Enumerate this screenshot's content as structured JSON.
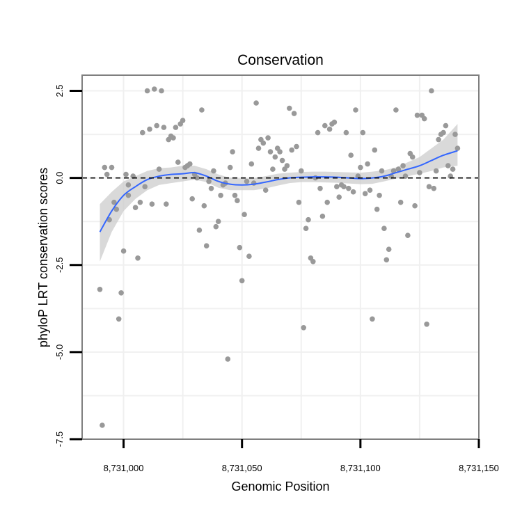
{
  "chart_data": {
    "type": "scatter",
    "title": "Conservation",
    "xlabel": "Genomic Position",
    "ylabel": "phyloP LRT conservation scores",
    "xlim": [
      8730982.5,
      8731150
    ],
    "ylim": [
      -7.5,
      2.95
    ],
    "x_ticks": [
      8731000,
      8731050,
      8731100,
      8731150
    ],
    "x_tick_labels": [
      "8,731,000",
      "8,731,050",
      "8,731,100",
      "8,731,150"
    ],
    "y_ticks": [
      -7.5,
      -5.0,
      -2.5,
      0.0,
      2.5
    ],
    "y_tick_labels": [
      "-7.5",
      "-5.0",
      "-2.5",
      "0.0",
      "2.5"
    ],
    "grid": true,
    "reference_line": {
      "y": 0,
      "style": "dashed",
      "color": "#000000"
    },
    "colors": {
      "points": "#999999",
      "smooth": "#3366ff",
      "ribbon": "#cccccc",
      "border": "#7f7f7f",
      "grid": "#f0f0f0"
    },
    "points": [
      [
        8730990,
        -3.2
      ],
      [
        8730991,
        -7.1
      ],
      [
        8730992,
        0.3
      ],
      [
        8730993,
        0.1
      ],
      [
        8730994,
        -1.2
      ],
      [
        8730995,
        0.3
      ],
      [
        8730996,
        -0.7
      ],
      [
        8730997,
        -0.9
      ],
      [
        8730998,
        -4.05
      ],
      [
        8730999,
        -3.3
      ],
      [
        8731000,
        -2.1
      ],
      [
        8731001,
        0.1
      ],
      [
        8731002,
        -0.2
      ],
      [
        8731002,
        -0.5
      ],
      [
        8731004,
        0.05
      ],
      [
        8731005,
        -0.85
      ],
      [
        8731006,
        -2.3
      ],
      [
        8731007,
        -0.7
      ],
      [
        8731008,
        1.3
      ],
      [
        8731009,
        -0.25
      ],
      [
        8731010,
        2.5
      ],
      [
        8731011,
        1.4
      ],
      [
        8731012,
        -0.75
      ],
      [
        8731013,
        2.55
      ],
      [
        8731014,
        1.5
      ],
      [
        8731015,
        0.25
      ],
      [
        8731016,
        2.5
      ],
      [
        8731017,
        1.45
      ],
      [
        8731018,
        -0.75
      ],
      [
        8731019,
        1.1
      ],
      [
        8731020,
        1.2
      ],
      [
        8731021,
        1.15
      ],
      [
        8731022,
        1.45
      ],
      [
        8731023,
        0.45
      ],
      [
        8731024,
        1.55
      ],
      [
        8731025,
        1.65
      ],
      [
        8731026,
        0.3
      ],
      [
        8731027,
        0.35
      ],
      [
        8731028,
        0.4
      ],
      [
        8731029,
        -0.6
      ],
      [
        8731030,
        0.1
      ],
      [
        8731031,
        0.0
      ],
      [
        8731032,
        -1.5
      ],
      [
        8731033,
        1.95
      ],
      [
        8731034,
        -0.8
      ],
      [
        8731035,
        -1.95
      ],
      [
        8731036,
        -0.1
      ],
      [
        8731037,
        -0.3
      ],
      [
        8731038,
        0.2
      ],
      [
        8731039,
        -1.4
      ],
      [
        8731040,
        -1.25
      ],
      [
        8731041,
        -0.5
      ],
      [
        8731042,
        -0.2
      ],
      [
        8731043,
        -0.15
      ],
      [
        8731044,
        -5.2
      ],
      [
        8731045,
        0.3
      ],
      [
        8731046,
        0.75
      ],
      [
        8731047,
        -0.5
      ],
      [
        8731048,
        -0.65
      ],
      [
        8731049,
        -2.0
      ],
      [
        8731050,
        -2.95
      ],
      [
        8731051,
        -1.05
      ],
      [
        8731052,
        -0.1
      ],
      [
        8731053,
        -2.25
      ],
      [
        8731054,
        0.4
      ],
      [
        8731055,
        -0.15
      ],
      [
        8731056,
        2.15
      ],
      [
        8731057,
        0.85
      ],
      [
        8731058,
        1.1
      ],
      [
        8731059,
        1.0
      ],
      [
        8731060,
        -0.35
      ],
      [
        8731061,
        1.15
      ],
      [
        8731062,
        0.75
      ],
      [
        8731063,
        0.25
      ],
      [
        8731064,
        0.6
      ],
      [
        8731065,
        0.85
      ],
      [
        8731066,
        0.75
      ],
      [
        8731067,
        0.5
      ],
      [
        8731068,
        0.25
      ],
      [
        8731069,
        0.35
      ],
      [
        8731070,
        2.0
      ],
      [
        8731071,
        0.8
      ],
      [
        8731072,
        1.85
      ],
      [
        8731073,
        0.9
      ],
      [
        8731074,
        -0.7
      ],
      [
        8731075,
        0.2
      ],
      [
        8731076,
        -4.3
      ],
      [
        8731077,
        -1.45
      ],
      [
        8731078,
        -1.2
      ],
      [
        8731079,
        -2.3
      ],
      [
        8731080,
        -2.4
      ],
      [
        8731081,
        0.0
      ],
      [
        8731082,
        1.3
      ],
      [
        8731083,
        -0.3
      ],
      [
        8731084,
        -1.1
      ],
      [
        8731085,
        1.5
      ],
      [
        8731086,
        -0.7
      ],
      [
        8731087,
        1.4
      ],
      [
        8731088,
        1.55
      ],
      [
        8731089,
        1.6
      ],
      [
        8731090,
        -0.25
      ],
      [
        8731091,
        -0.55
      ],
      [
        8731092,
        -0.2
      ],
      [
        8731093,
        -0.25
      ],
      [
        8731094,
        1.3
      ],
      [
        8731095,
        -0.3
      ],
      [
        8731096,
        0.65
      ],
      [
        8731097,
        -0.4
      ],
      [
        8731098,
        1.95
      ],
      [
        8731099,
        0.05
      ],
      [
        8731100,
        0.3
      ],
      [
        8731101,
        1.3
      ],
      [
        8731102,
        -0.45
      ],
      [
        8731103,
        0.4
      ],
      [
        8731104,
        -0.35
      ],
      [
        8731105,
        -4.05
      ],
      [
        8731106,
        0.8
      ],
      [
        8731107,
        -0.9
      ],
      [
        8731108,
        -0.5
      ],
      [
        8731109,
        0.2
      ],
      [
        8731110,
        -1.45
      ],
      [
        8731111,
        -2.35
      ],
      [
        8731112,
        -2.05
      ],
      [
        8731113,
        0.05
      ],
      [
        8731114,
        0.2
      ],
      [
        8731115,
        1.95
      ],
      [
        8731116,
        0.25
      ],
      [
        8731117,
        -0.7
      ],
      [
        8731118,
        0.35
      ],
      [
        8731119,
        0.05
      ],
      [
        8731120,
        -1.65
      ],
      [
        8731121,
        0.7
      ],
      [
        8731122,
        0.6
      ],
      [
        8731123,
        -0.8
      ],
      [
        8731124,
        1.8
      ],
      [
        8731125,
        0.15
      ],
      [
        8731126,
        1.8
      ],
      [
        8731127,
        1.7
      ],
      [
        8731128,
        -4.2
      ],
      [
        8731129,
        -0.25
      ],
      [
        8731130,
        2.5
      ],
      [
        8731131,
        -0.3
      ],
      [
        8731132,
        0.2
      ],
      [
        8731133,
        1.1
      ],
      [
        8731134,
        1.25
      ],
      [
        8731135,
        1.3
      ],
      [
        8731136,
        1.5
      ],
      [
        8731137,
        0.35
      ],
      [
        8731138,
        0.05
      ],
      [
        8731139,
        0.25
      ],
      [
        8731140,
        1.25
      ],
      [
        8731141,
        0.85
      ]
    ],
    "smooth": [
      [
        8730990,
        -1.55
      ],
      [
        8730995,
        -0.95
      ],
      [
        8731000,
        -0.5
      ],
      [
        8731005,
        -0.25
      ],
      [
        8731010,
        -0.05
      ],
      [
        8731015,
        0.05
      ],
      [
        8731020,
        0.1
      ],
      [
        8731025,
        0.12
      ],
      [
        8731030,
        0.15
      ],
      [
        8731035,
        0.05
      ],
      [
        8731040,
        -0.1
      ],
      [
        8731045,
        -0.18
      ],
      [
        8731050,
        -0.2
      ],
      [
        8731055,
        -0.18
      ],
      [
        8731060,
        -0.12
      ],
      [
        8731065,
        -0.05
      ],
      [
        8731070,
        0.0
      ],
      [
        8731075,
        0.02
      ],
      [
        8731080,
        0.03
      ],
      [
        8731085,
        0.03
      ],
      [
        8731090,
        0.02
      ],
      [
        8731095,
        0.0
      ],
      [
        8731100,
        -0.02
      ],
      [
        8731105,
        0.0
      ],
      [
        8731110,
        0.05
      ],
      [
        8731115,
        0.15
      ],
      [
        8731120,
        0.25
      ],
      [
        8731125,
        0.35
      ],
      [
        8731130,
        0.5
      ],
      [
        8731135,
        0.65
      ],
      [
        8731141,
        0.78
      ]
    ],
    "ribbon": [
      [
        8730990,
        -2.4,
        -0.75
      ],
      [
        8730995,
        -1.55,
        -0.4
      ],
      [
        8731000,
        -0.95,
        -0.1
      ],
      [
        8731005,
        -0.6,
        0.05
      ],
      [
        8731010,
        -0.35,
        0.2
      ],
      [
        8731015,
        -0.2,
        0.28
      ],
      [
        8731020,
        -0.15,
        0.3
      ],
      [
        8731025,
        -0.1,
        0.35
      ],
      [
        8731030,
        -0.05,
        0.35
      ],
      [
        8731035,
        -0.12,
        0.25
      ],
      [
        8731040,
        -0.28,
        0.1
      ],
      [
        8731045,
        -0.35,
        0.0
      ],
      [
        8731050,
        -0.35,
        -0.02
      ],
      [
        8731055,
        -0.35,
        -0.01
      ],
      [
        8731060,
        -0.3,
        0.05
      ],
      [
        8731065,
        -0.22,
        0.12
      ],
      [
        8731070,
        -0.15,
        0.15
      ],
      [
        8731075,
        -0.12,
        0.17
      ],
      [
        8731080,
        -0.12,
        0.18
      ],
      [
        8731085,
        -0.13,
        0.18
      ],
      [
        8731090,
        -0.14,
        0.17
      ],
      [
        8731095,
        -0.16,
        0.16
      ],
      [
        8731100,
        -0.18,
        0.15
      ],
      [
        8731105,
        -0.17,
        0.18
      ],
      [
        8731110,
        -0.1,
        0.22
      ],
      [
        8731115,
        -0.02,
        0.3
      ],
      [
        8731120,
        0.05,
        0.45
      ],
      [
        8731125,
        0.12,
        0.6
      ],
      [
        8731130,
        0.2,
        0.85
      ],
      [
        8731135,
        0.3,
        1.1
      ],
      [
        8731141,
        0.35,
        1.55
      ]
    ]
  }
}
